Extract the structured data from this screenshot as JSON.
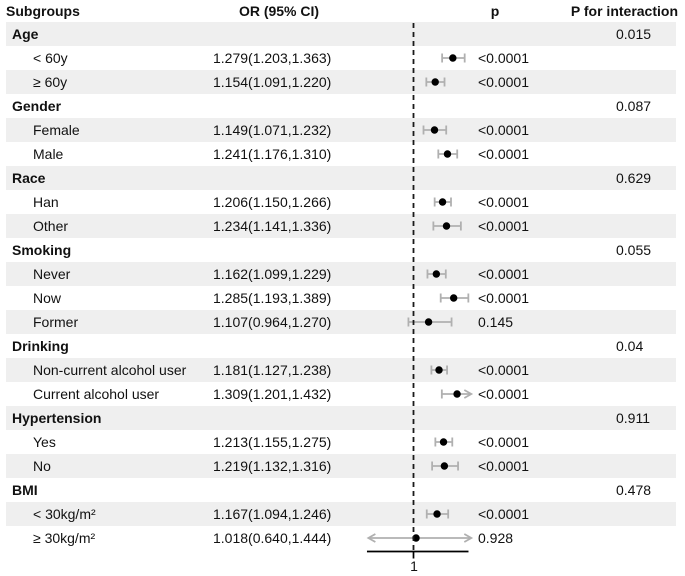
{
  "header": {
    "subgroups": "Subgroups",
    "or_ci": "OR (95% CI)",
    "p": "p",
    "p_interaction": "P for interaction"
  },
  "axis": {
    "ref_label": "1",
    "ref_value": 1
  },
  "colors": {
    "band": "#efefef",
    "error_bar": "#b0b0b0",
    "marker": "#000000",
    "ref_line": "#1a1a1a",
    "axis_line": "#000000",
    "text": "#111111"
  },
  "chart_data": {
    "type": "forest",
    "title": "",
    "x_ref": 1,
    "x_clip": [
      0.68,
      1.41
    ],
    "x_axis_span": [
      0.67,
      1.39
    ],
    "rows": [
      {
        "label": "Age",
        "level": "group",
        "p_interaction": "0.015"
      },
      {
        "label": "< 60y",
        "level": "item",
        "or_ci": "1.279(1.203,1.363)",
        "est": 1.279,
        "lo": 1.203,
        "hi": 1.363,
        "p": "<0.0001"
      },
      {
        "label": "≥ 60y",
        "level": "item",
        "or_ci": "1.154(1.091,1.220)",
        "est": 1.154,
        "lo": 1.091,
        "hi": 1.22,
        "p": "<0.0001"
      },
      {
        "label": "Gender",
        "level": "group",
        "p_interaction": "0.087"
      },
      {
        "label": "Female",
        "level": "item",
        "or_ci": "1.149(1.071,1.232)",
        "est": 1.149,
        "lo": 1.071,
        "hi": 1.232,
        "p": "<0.0001"
      },
      {
        "label": "Male",
        "level": "item",
        "or_ci": "1.241(1.176,1.310)",
        "est": 1.241,
        "lo": 1.176,
        "hi": 1.31,
        "p": "<0.0001"
      },
      {
        "label": "Race",
        "level": "group",
        "p_interaction": "0.629"
      },
      {
        "label": "Han",
        "level": "item",
        "or_ci": "1.206(1.150,1.266)",
        "est": 1.206,
        "lo": 1.15,
        "hi": 1.266,
        "p": "<0.0001"
      },
      {
        "label": "Other",
        "level": "item",
        "or_ci": "1.234(1.141,1.336)",
        "est": 1.234,
        "lo": 1.141,
        "hi": 1.336,
        "p": "<0.0001"
      },
      {
        "label": "Smoking",
        "level": "group",
        "p_interaction": "0.055"
      },
      {
        "label": "Never",
        "level": "item",
        "or_ci": "1.162(1.099,1.229)",
        "est": 1.162,
        "lo": 1.099,
        "hi": 1.229,
        "p": "<0.0001"
      },
      {
        "label": "Now",
        "level": "item",
        "or_ci": "1.285(1.193,1.389)",
        "est": 1.285,
        "lo": 1.193,
        "hi": 1.389,
        "p": "<0.0001"
      },
      {
        "label": "Former",
        "level": "item",
        "or_ci": "1.107(0.964,1.270)",
        "est": 1.107,
        "lo": 0.964,
        "hi": 1.27,
        "p": "0.145"
      },
      {
        "label": "Drinking",
        "level": "group",
        "p_interaction": "0.04"
      },
      {
        "label": "Non-current alcohol user",
        "level": "item",
        "or_ci": "1.181(1.127,1.238)",
        "est": 1.181,
        "lo": 1.127,
        "hi": 1.238,
        "p": "<0.0001"
      },
      {
        "label": "Current alcohol user",
        "level": "item",
        "or_ci": "1.309(1.201,1.432)",
        "est": 1.309,
        "lo": 1.201,
        "hi": 1.432,
        "p": "<0.0001"
      },
      {
        "label": "Hypertension",
        "level": "group",
        "p_interaction": "0.911"
      },
      {
        "label": "Yes",
        "level": "item",
        "or_ci": "1.213(1.155,1.275)",
        "est": 1.213,
        "lo": 1.155,
        "hi": 1.275,
        "p": "<0.0001"
      },
      {
        "label": "No",
        "level": "item",
        "or_ci": "1.219(1.132,1.316)",
        "est": 1.219,
        "lo": 1.132,
        "hi": 1.316,
        "p": "<0.0001"
      },
      {
        "label": "BMI",
        "level": "group",
        "p_interaction": "0.478"
      },
      {
        "label": "< 30kg/m²",
        "level": "item",
        "or_ci": "1.167(1.094,1.246)",
        "est": 1.167,
        "lo": 1.094,
        "hi": 1.246,
        "p": "<0.0001"
      },
      {
        "label": "≥ 30kg/m²",
        "level": "item",
        "or_ci": "1.018(0.640,1.444)",
        "est": 1.018,
        "lo": 0.64,
        "hi": 1.444,
        "p": "0.928"
      }
    ]
  }
}
